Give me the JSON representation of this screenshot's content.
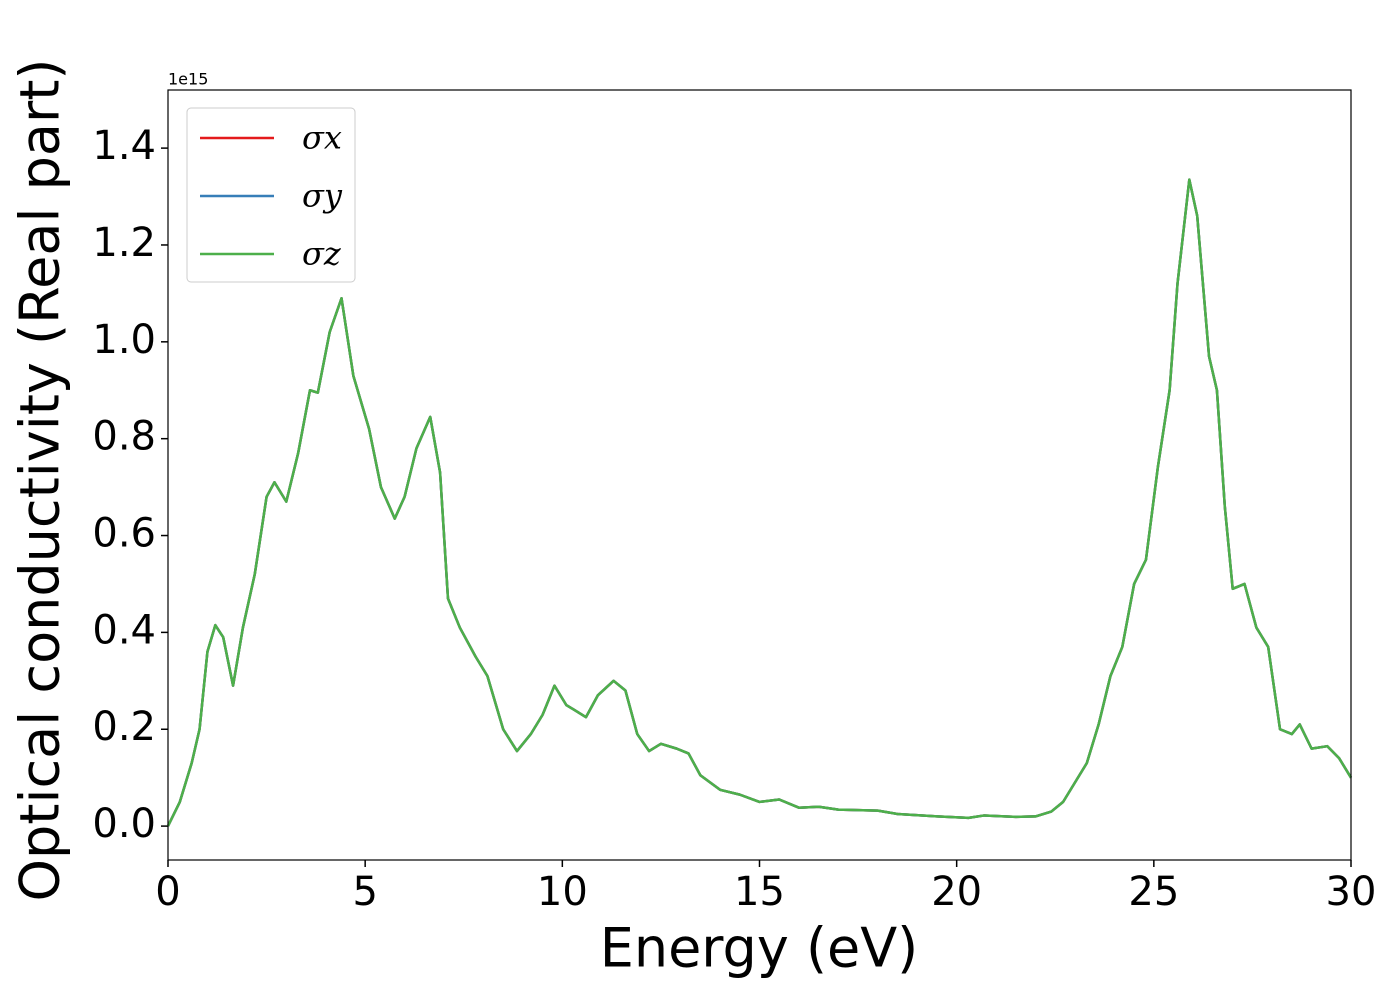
{
  "chart_data": {
    "type": "line",
    "x_label": "Energy (eV)",
    "y_label": "Optical conductivity (Real part)",
    "y_offset_label": "1e15",
    "xlim": [
      0,
      30
    ],
    "ylim": [
      -0.07,
      1.52
    ],
    "xticks": [
      0,
      5,
      10,
      15,
      20,
      25,
      30
    ],
    "yticks": [
      {
        "value": 0,
        "label": "0.0"
      },
      {
        "value": 0.2,
        "label": "0.2"
      },
      {
        "value": 0.4,
        "label": "0.4"
      },
      {
        "value": 0.6,
        "label": "0.6"
      },
      {
        "value": 0.8,
        "label": "0.8"
      },
      {
        "value": 1.0,
        "label": "1.0"
      },
      {
        "value": 1.2,
        "label": "1.2"
      },
      {
        "value": 1.4,
        "label": "1.4"
      }
    ],
    "legend": "upper left",
    "x": [
      0,
      0.3,
      0.6,
      0.8,
      1.0,
      1.2,
      1.4,
      1.65,
      1.9,
      2.2,
      2.5,
      2.7,
      3.0,
      3.3,
      3.6,
      3.8,
      4.1,
      4.4,
      4.7,
      5.1,
      5.4,
      5.75,
      6.0,
      6.3,
      6.65,
      6.9,
      7.1,
      7.4,
      7.8,
      8.1,
      8.5,
      8.85,
      9.2,
      9.5,
      9.8,
      10.1,
      10.3,
      10.6,
      10.9,
      11.3,
      11.6,
      11.9,
      12.2,
      12.5,
      12.9,
      13.2,
      13.5,
      14.0,
      14.5,
      15.0,
      15.5,
      16.0,
      16.5,
      17.0,
      18.0,
      18.5,
      19.5,
      20.3,
      20.7,
      21.5,
      22.0,
      22.4,
      22.7,
      23.0,
      23.3,
      23.6,
      23.9,
      24.2,
      24.5,
      24.8,
      25.1,
      25.4,
      25.6,
      25.9,
      26.1,
      26.4,
      26.6,
      26.8,
      27.0,
      27.3,
      27.6,
      27.9,
      28.2,
      28.5,
      28.7,
      29.0,
      29.4,
      29.7,
      30
    ],
    "series": [
      {
        "name": "σx",
        "color": "#e41a1c",
        "values": [
          0,
          0.05,
          0.13,
          0.2,
          0.36,
          0.415,
          0.39,
          0.29,
          0.41,
          0.52,
          0.68,
          0.71,
          0.67,
          0.77,
          0.9,
          0.895,
          1.02,
          1.09,
          0.93,
          0.82,
          0.7,
          0.635,
          0.68,
          0.78,
          0.845,
          0.73,
          0.47,
          0.41,
          0.35,
          0.31,
          0.2,
          0.155,
          0.19,
          0.23,
          0.29,
          0.25,
          0.24,
          0.225,
          0.27,
          0.3,
          0.28,
          0.19,
          0.155,
          0.17,
          0.16,
          0.15,
          0.105,
          0.075,
          0.065,
          0.05,
          0.055,
          0.038,
          0.04,
          0.034,
          0.032,
          0.025,
          0.02,
          0.017,
          0.022,
          0.019,
          0.02,
          0.03,
          0.05,
          0.09,
          0.13,
          0.21,
          0.31,
          0.37,
          0.5,
          0.55,
          0.74,
          0.9,
          1.12,
          1.335,
          1.26,
          0.97,
          0.9,
          0.66,
          0.49,
          0.5,
          0.41,
          0.37,
          0.2,
          0.19,
          0.21,
          0.16,
          0.165,
          0.14,
          0.1
        ]
      },
      {
        "name": "σy",
        "color": "#377eb8",
        "values": [
          0,
          0.05,
          0.13,
          0.2,
          0.36,
          0.415,
          0.39,
          0.29,
          0.41,
          0.52,
          0.68,
          0.71,
          0.67,
          0.77,
          0.9,
          0.895,
          1.02,
          1.09,
          0.93,
          0.82,
          0.7,
          0.635,
          0.68,
          0.78,
          0.845,
          0.73,
          0.47,
          0.41,
          0.35,
          0.31,
          0.2,
          0.155,
          0.19,
          0.23,
          0.29,
          0.25,
          0.24,
          0.225,
          0.27,
          0.3,
          0.28,
          0.19,
          0.155,
          0.17,
          0.16,
          0.15,
          0.105,
          0.075,
          0.065,
          0.05,
          0.055,
          0.038,
          0.04,
          0.034,
          0.032,
          0.025,
          0.02,
          0.017,
          0.022,
          0.019,
          0.02,
          0.03,
          0.05,
          0.09,
          0.13,
          0.21,
          0.31,
          0.37,
          0.5,
          0.55,
          0.74,
          0.9,
          1.12,
          1.335,
          1.26,
          0.97,
          0.9,
          0.66,
          0.49,
          0.5,
          0.41,
          0.37,
          0.2,
          0.19,
          0.21,
          0.16,
          0.165,
          0.14,
          0.1
        ]
      },
      {
        "name": "σz",
        "color": "#4daf4a",
        "values": [
          0,
          0.05,
          0.13,
          0.2,
          0.36,
          0.415,
          0.39,
          0.29,
          0.41,
          0.52,
          0.68,
          0.71,
          0.67,
          0.77,
          0.9,
          0.895,
          1.02,
          1.09,
          0.93,
          0.82,
          0.7,
          0.635,
          0.68,
          0.78,
          0.845,
          0.73,
          0.47,
          0.41,
          0.35,
          0.31,
          0.2,
          0.155,
          0.19,
          0.23,
          0.29,
          0.25,
          0.24,
          0.225,
          0.27,
          0.3,
          0.28,
          0.19,
          0.155,
          0.17,
          0.16,
          0.15,
          0.105,
          0.075,
          0.065,
          0.05,
          0.055,
          0.038,
          0.04,
          0.034,
          0.032,
          0.025,
          0.02,
          0.017,
          0.022,
          0.019,
          0.02,
          0.03,
          0.05,
          0.09,
          0.13,
          0.21,
          0.31,
          0.37,
          0.5,
          0.55,
          0.74,
          0.9,
          1.12,
          1.335,
          1.26,
          0.97,
          0.9,
          0.66,
          0.49,
          0.5,
          0.41,
          0.37,
          0.2,
          0.19,
          0.21,
          0.16,
          0.165,
          0.14,
          0.1
        ]
      }
    ]
  }
}
